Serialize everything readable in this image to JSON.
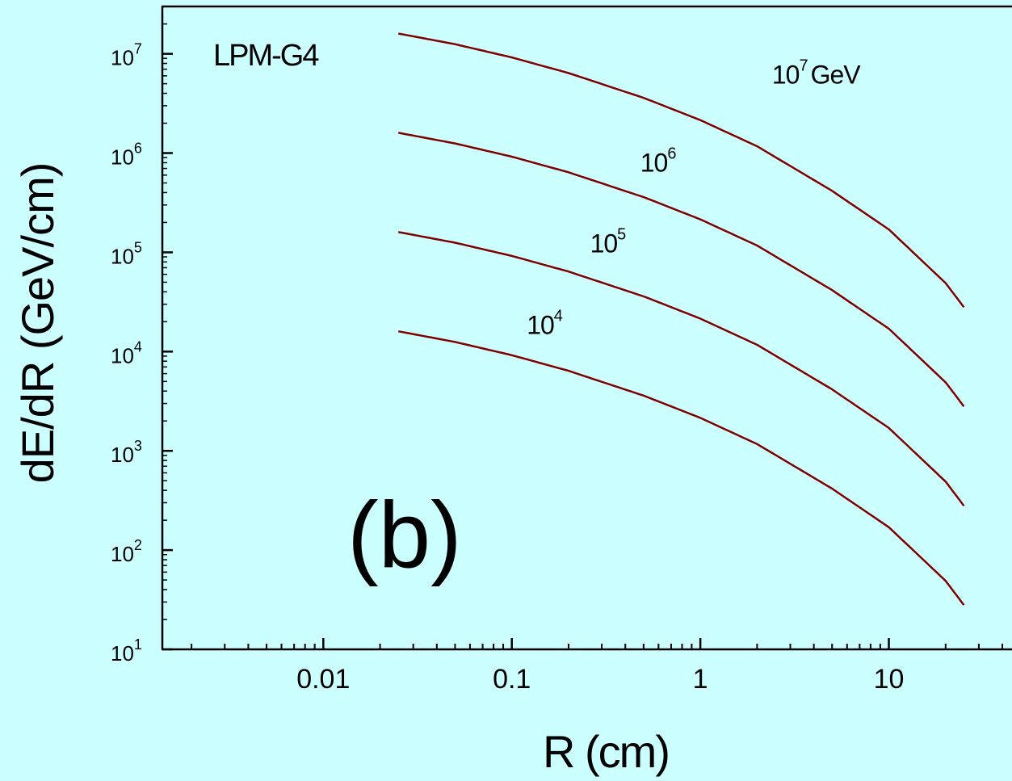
{
  "chart_data": {
    "type": "line",
    "panel_tag": "LPM-G4",
    "panel_letter": "(b)",
    "xlabel": "R  (cm)",
    "ylabel": "dE/dR  (GeV/cm)",
    "x_scale": "log",
    "y_scale": "log",
    "xlim": [
      0.0014,
      45
    ],
    "ylim": [
      10,
      30000000
    ],
    "grid": false,
    "x_ticks": [
      {
        "value": 0.01,
        "label": "0.01"
      },
      {
        "value": 0.1,
        "label": "0.1"
      },
      {
        "value": 1,
        "label": "1"
      },
      {
        "value": 10,
        "label": "10"
      }
    ],
    "y_ticks": [
      {
        "value": 10,
        "base": "10",
        "exp": "1"
      },
      {
        "value": 100,
        "base": "10",
        "exp": "2"
      },
      {
        "value": 1000,
        "base": "10",
        "exp": "3"
      },
      {
        "value": 10000,
        "base": "10",
        "exp": "4"
      },
      {
        "value": 100000,
        "base": "10",
        "exp": "5"
      },
      {
        "value": 1000000,
        "base": "10",
        "exp": "6"
      },
      {
        "value": 10000000,
        "base": "10",
        "exp": "7"
      }
    ],
    "line_color": "#800000",
    "series": [
      {
        "label_base": "10",
        "label_exp": "7",
        "label_suffix": "GeV",
        "label_at": {
          "x": 2.4,
          "y": 5000000
        },
        "x": [
          0.025,
          0.05,
          0.1,
          0.2,
          0.5,
          1,
          2,
          5,
          10,
          20,
          25
        ],
        "y": [
          16000000,
          12500000,
          9200000,
          6400000,
          3600000,
          2150000,
          1170000,
          416000,
          170000,
          49000,
          28000
        ]
      },
      {
        "label_base": "10",
        "label_exp": "6",
        "label_suffix": "",
        "label_at": {
          "x": 0.48,
          "y": 650000
        },
        "x": [
          0.025,
          0.05,
          0.1,
          0.2,
          0.5,
          1,
          2,
          5,
          10,
          20,
          25
        ],
        "y": [
          1600000,
          1250000,
          920000,
          640000,
          360000,
          215000,
          117000,
          41600,
          17000,
          4900,
          2800
        ]
      },
      {
        "label_base": "10",
        "label_exp": "5",
        "label_suffix": "",
        "label_at": {
          "x": 0.26,
          "y": 100000
        },
        "x": [
          0.025,
          0.05,
          0.1,
          0.2,
          0.5,
          1,
          2,
          5,
          10,
          20,
          25
        ],
        "y": [
          160000,
          125000,
          92000,
          64000,
          36000,
          21500,
          11700,
          4160,
          1700,
          490,
          280
        ]
      },
      {
        "label_base": "10",
        "label_exp": "4",
        "label_suffix": "",
        "label_at": {
          "x": 0.12,
          "y": 15000
        },
        "x": [
          0.025,
          0.05,
          0.1,
          0.2,
          0.5,
          1,
          2,
          5,
          10,
          20,
          25
        ],
        "y": [
          16000,
          12500,
          9200,
          6400,
          3600,
          2150,
          1170,
          416,
          170,
          49,
          28
        ]
      }
    ]
  }
}
